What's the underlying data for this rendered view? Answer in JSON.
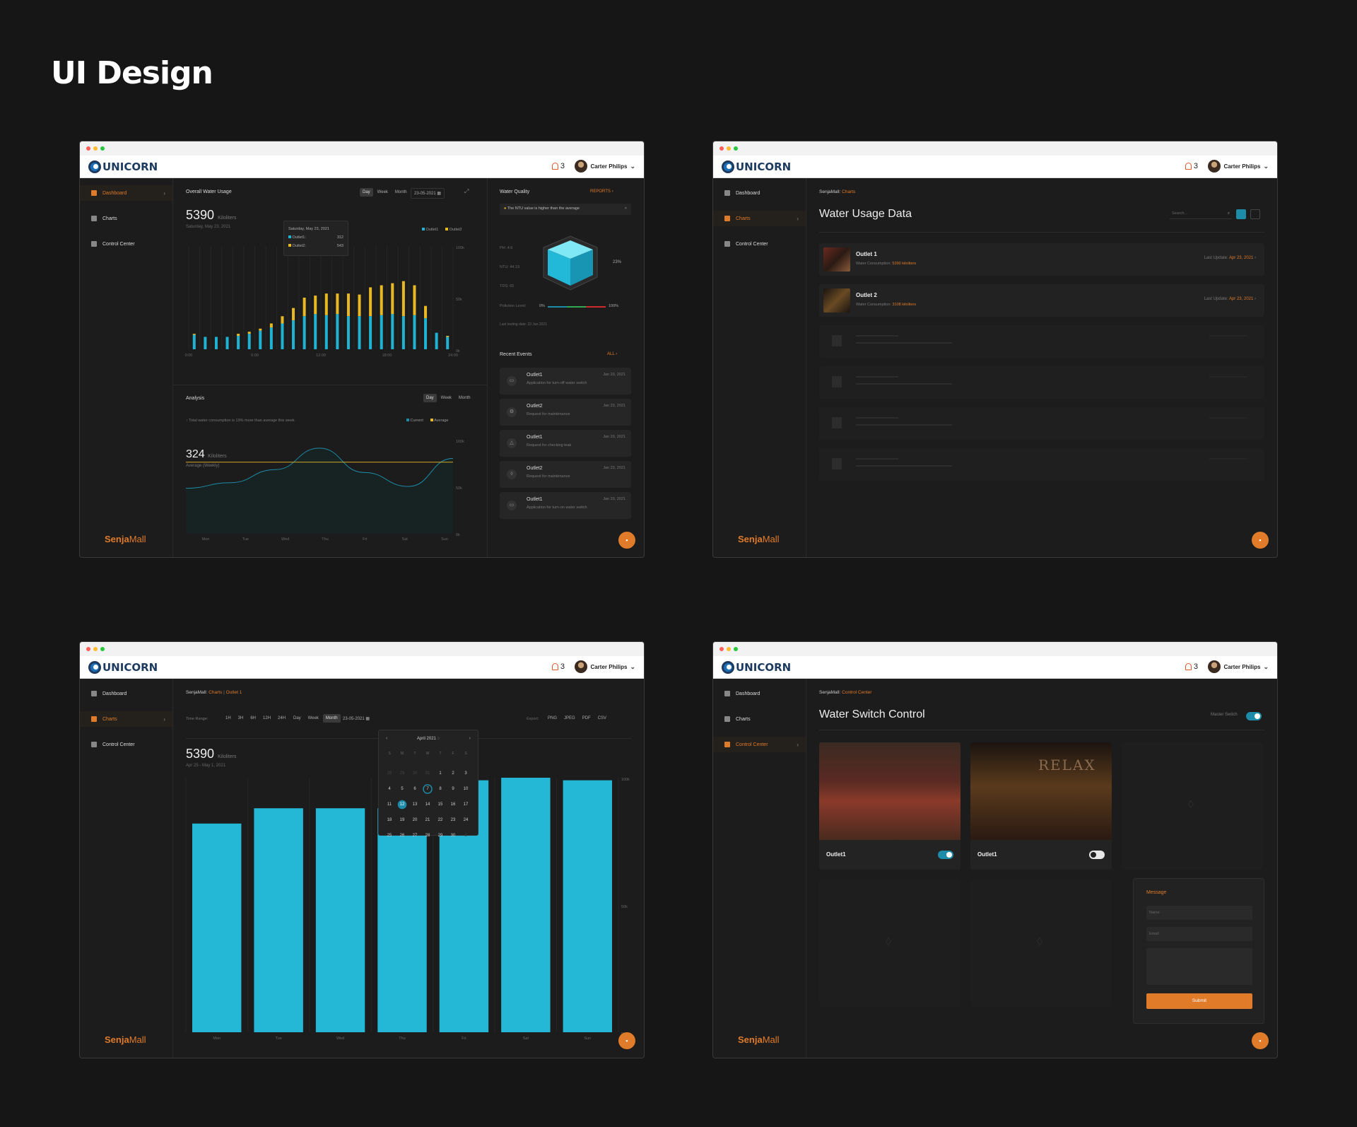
{
  "page_title": "UI Design",
  "app": {
    "logo_text": "UNICORN",
    "notifications": "3",
    "user_name": "Carter Philips",
    "brand_bold": "Senja",
    "brand_light": "Mall",
    "fab_icon": "chat-icon"
  },
  "nav": {
    "dashboard": "Dashboard",
    "charts": "Charts",
    "control": "Control Center"
  },
  "w1": {
    "usage_title": "Overall Water Usage",
    "ranges": [
      "Day",
      "Week",
      "Month"
    ],
    "date": "23-05-2021",
    "total": "5390",
    "unit": "Kiloliters",
    "total_date": "Saturday, May 23, 2021",
    "legend1": "Outlet1",
    "legend2": "Outlet2",
    "tooltip": {
      "date": "Saturday, May 23, 2021",
      "o1_label": "Outlet1:",
      "o1_val": "312",
      "o2_label": "Outlet2:",
      "o2_val": "543"
    },
    "analysis_title": "Analysis",
    "analysis_note": "↑ Total water consumption is 19% more than average this week",
    "legend_current": "Current",
    "legend_average": "Average",
    "avg_value": "324",
    "avg_unit": "Kiloliters",
    "avg_label": "Average (Weekly)",
    "wq_title": "Water Quality",
    "reports": "REPORTS",
    "alert": "The NTU value is higher than the average",
    "ph": "PH: 4.6",
    "ntu": "NTU: 44.19",
    "tds": "TDS: 65",
    "cube_pct": "23%",
    "pollution_label": "Pollution Level:",
    "pol_min": "0%",
    "pol_max": "100%",
    "last_test": "Last testing date: 23 Jan 2021",
    "events_title": "Recent Events",
    "all": "ALL",
    "events": [
      {
        "t": "Outlet1",
        "s": "Application for turn-off water switch",
        "d": "Jan 23, 2021"
      },
      {
        "t": "Outlet2",
        "s": "Request for maintenance",
        "d": "Jan 23, 2021"
      },
      {
        "t": "Outlet1",
        "s": "Request for checking leak",
        "d": "Jan 23, 2021"
      },
      {
        "t": "Outlet2",
        "s": "Request for maintenance",
        "d": "Jan 23, 2021"
      },
      {
        "t": "Outlet1",
        "s": "Application for turn-on water switch",
        "d": "Jan 23, 2021"
      }
    ]
  },
  "w2": {
    "crumb_root": "SenjaMall:",
    "crumb_leaf": "Charts",
    "title": "Water Usage Data",
    "search_placeholder": "Search...",
    "outlets": [
      {
        "name": "Outlet 1",
        "sub_label": "Water Consumption:",
        "sub_val": "5390 kiloliters",
        "upd_label": "Last Update:",
        "upd_val": "Apr 23, 2021"
      },
      {
        "name": "Outlet 2",
        "sub_label": "Water Consumption:",
        "sub_val": "3108 kiloliters",
        "upd_label": "Last Update:",
        "upd_val": "Apr 23, 2021"
      }
    ]
  },
  "w3": {
    "crumb_root": "SenjaMall:",
    "crumb_mid": "Charts",
    "crumb_leaf": "Outlet 1",
    "time_range_label": "Time Range:",
    "hours": [
      "1H",
      "3H",
      "6H",
      "12H",
      "24H"
    ],
    "periods": [
      "Day",
      "Week",
      "Month"
    ],
    "date": "23-05-2021",
    "export_label": "Export:",
    "exports": [
      "PNG",
      "JPEG",
      "PDF",
      "CSV"
    ],
    "total": "5390",
    "unit": "Kiloliters",
    "range": "Apr 25 - May 1, 2021",
    "calendar": {
      "month": "April 2021",
      "dow": [
        "S",
        "M",
        "T",
        "W",
        "T",
        "F",
        "S"
      ],
      "days": [
        "28",
        "29",
        "30",
        "31",
        "1",
        "2",
        "3",
        "4",
        "5",
        "6",
        "7",
        "8",
        "9",
        "10",
        "11",
        "12",
        "13",
        "14",
        "15",
        "16",
        "17",
        "18",
        "19",
        "20",
        "21",
        "22",
        "23",
        "24",
        "25",
        "26",
        "27",
        "28",
        "29",
        "30",
        "1"
      ],
      "today": "7",
      "selected": "12"
    }
  },
  "w4": {
    "crumb_root": "SenjaMall:",
    "crumb_leaf": "Control Center",
    "title": "Water Switch Control",
    "master": "Master Switch",
    "switch1": "Outlet1",
    "switch2": "Outlet1",
    "msg_title": "Message",
    "name_ph": "Name",
    "email_ph": "Email",
    "submit": "Submit"
  },
  "chart_data": [
    {
      "type": "bar",
      "title": "Overall Water Usage",
      "x_ticks": [
        "0:00",
        "6:00",
        "12:00",
        "18:00",
        "24:00"
      ],
      "y_ticks": [
        "100k",
        "50k",
        "0k"
      ],
      "ylim": [
        0,
        100
      ],
      "series": [
        {
          "name": "Outlet1",
          "color": "#1fb2d2",
          "values": [
            14,
            12,
            12,
            12,
            13,
            15,
            18,
            21,
            25,
            28,
            32,
            34,
            33,
            34,
            32,
            32,
            32,
            33,
            34,
            32,
            33,
            30,
            16,
            12
          ]
        },
        {
          "name": "Outlet2",
          "color": "#e8b923",
          "values": [
            15,
            12,
            10,
            12,
            15,
            17,
            20,
            25,
            32,
            40,
            50,
            52,
            54,
            54,
            54,
            53,
            60,
            62,
            64,
            66,
            62,
            42,
            16,
            13
          ]
        }
      ]
    },
    {
      "type": "area",
      "title": "Analysis",
      "categories": [
        "Mon",
        "Tue",
        "Wed",
        "Thu",
        "Fri",
        "Sat",
        "Sun"
      ],
      "y_ticks": [
        "100k",
        "50k",
        "0k"
      ],
      "ylim": [
        0,
        100
      ],
      "series": [
        {
          "name": "Current",
          "color": "#1d8ca8",
          "values": [
            48,
            54,
            68,
            91,
            65,
            50,
            80
          ]
        },
        {
          "name": "Average",
          "color": "#e8b923",
          "values": [
            76,
            76,
            76,
            76,
            76,
            76,
            76
          ]
        }
      ]
    },
    {
      "type": "bar",
      "categories": [
        "Mon",
        "Tue",
        "Wed",
        "Thu",
        "Fri",
        "Sat",
        "Sun"
      ],
      "y_ticks": [
        "100k",
        "50k",
        "0k"
      ],
      "ylim": [
        0,
        100
      ],
      "series": [
        {
          "color": "#24b8d6",
          "values": [
            82,
            88,
            88,
            88,
            99,
            100,
            99
          ]
        }
      ]
    }
  ]
}
